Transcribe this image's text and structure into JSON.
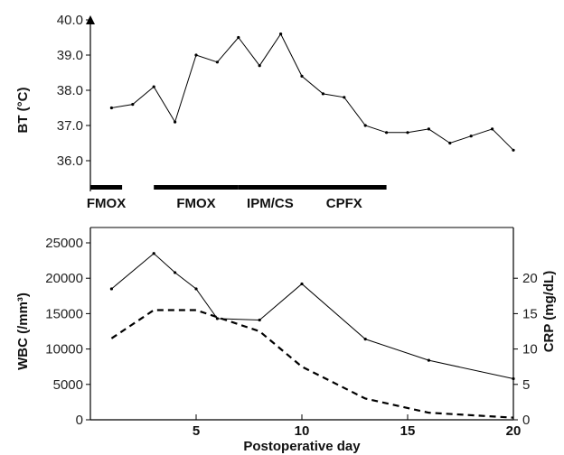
{
  "chart_data": [
    {
      "type": "line",
      "ylabel": "BT (°C)",
      "ylim": [
        36.0,
        40.0
      ],
      "yticks": [
        "36.0",
        "37.0",
        "38.0",
        "39.0",
        "40.0"
      ],
      "xlim": [
        0,
        20
      ],
      "series": [
        {
          "x": [
            1,
            2,
            3,
            4,
            5,
            6,
            7,
            8,
            9,
            10,
            11,
            12,
            13,
            14,
            15,
            16,
            17,
            18,
            19,
            20
          ],
          "values": [
            37.5,
            37.6,
            38.1,
            37.1,
            39.0,
            38.8,
            39.5,
            38.7,
            39.6,
            38.4,
            37.9,
            37.8,
            37.0,
            36.8,
            36.8,
            36.9,
            36.5,
            36.7,
            36.9,
            36.3
          ]
        }
      ],
      "antibiotics": [
        {
          "label": "FMOX",
          "start": 0,
          "end": 1.5
        },
        {
          "label": "FMOX",
          "start": 3,
          "end": 7
        },
        {
          "label": "IPM/CS",
          "start": 7,
          "end": 10
        },
        {
          "label": "CPFX",
          "start": 10,
          "end": 14
        }
      ]
    },
    {
      "type": "line",
      "xlabel": "Postoperative day",
      "ylabel": "WBC (/mm³)",
      "y2label": "CRP (mg/dL)",
      "xlim": [
        0,
        20
      ],
      "xticks": [
        "5",
        "10",
        "15",
        "20"
      ],
      "ylim": [
        0,
        25000
      ],
      "yticks": [
        "0",
        "5000",
        "10000",
        "15000",
        "20000",
        "25000"
      ],
      "y2lim": [
        0,
        25
      ],
      "y2ticks": [
        "0",
        "5",
        "10",
        "15",
        "20"
      ],
      "series": [
        {
          "axis": "left",
          "style": "solid",
          "x": [
            1,
            3,
            4,
            5,
            6,
            8,
            10,
            13,
            16,
            20
          ],
          "values": [
            18500,
            23500,
            20800,
            18500,
            14300,
            14100,
            19200,
            11400,
            8400,
            5800
          ]
        },
        {
          "axis": "right",
          "style": "dashed",
          "x": [
            1,
            3,
            5,
            8,
            10,
            13,
            16,
            20
          ],
          "values": [
            11.5,
            15.5,
            15.5,
            12.5,
            7.5,
            3.0,
            1.0,
            0.3
          ]
        }
      ]
    }
  ]
}
